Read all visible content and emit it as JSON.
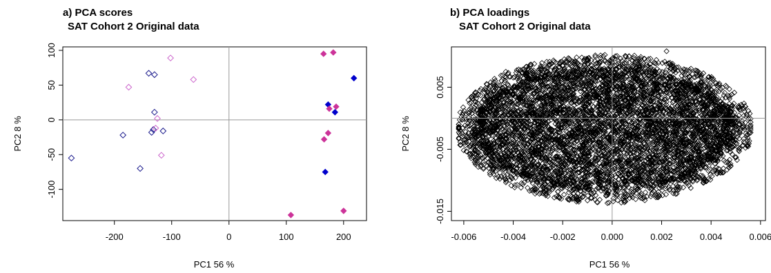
{
  "chart_data": [
    {
      "type": "scatter",
      "title": "a) PCA scores",
      "subtitle": "SAT Cohort 2 Original data",
      "xlabel": "PC1 56 %",
      "ylabel": "PC2 8 %",
      "xlim": [
        -290,
        240
      ],
      "ylim": [
        -145,
        105
      ],
      "xticks": [
        -200,
        -100,
        0,
        100,
        200
      ],
      "yticks": [
        100,
        50,
        0,
        -50,
        -100
      ],
      "reference_lines": {
        "x": 0,
        "y": 0
      },
      "colors": {
        "navy": "#1a1a8c",
        "magenta": "#cc3399",
        "blue": "#0000cc",
        "pink": "#cc66cc"
      },
      "series": [
        {
          "marker": "open-diamond",
          "color": "#1a1a8c",
          "points": [
            [
              -140,
              67
            ],
            [
              -130,
              65
            ],
            [
              -130,
              11
            ],
            [
              -132,
              -14
            ],
            [
              -135,
              -18
            ],
            [
              -115,
              -16
            ],
            [
              -185,
              -22
            ],
            [
              -155,
              -70
            ],
            [
              -275,
              -55
            ]
          ]
        },
        {
          "marker": "open-diamond",
          "color": "#cc66cc",
          "points": [
            [
              -102,
              89
            ],
            [
              -175,
              47
            ],
            [
              -62,
              58
            ],
            [
              -125,
              2
            ],
            [
              -128,
              -12
            ],
            [
              -118,
              -51
            ]
          ]
        },
        {
          "marker": "filled-diamond",
          "color": "#0000cc",
          "points": [
            [
              218,
              60
            ],
            [
              173,
              22
            ],
            [
              185,
              11
            ],
            [
              168,
              -75
            ]
          ]
        },
        {
          "marker": "filled-diamond",
          "color": "#cc3399",
          "points": [
            [
              165,
              95
            ],
            [
              182,
              97
            ],
            [
              187,
              19
            ],
            [
              175,
              16
            ],
            [
              173,
              -19
            ],
            [
              166,
              -28
            ],
            [
              108,
              -137
            ],
            [
              200,
              -131
            ]
          ]
        }
      ]
    },
    {
      "type": "scatter",
      "title": "b) PCA loadings",
      "subtitle": "SAT Cohort 2 Original data",
      "xlabel": "PC1 56 %",
      "ylabel": "PC2 8 %",
      "xlim": [
        -0.0065,
        0.0062
      ],
      "ylim": [
        -0.0165,
        0.0115
      ],
      "xticks": [
        -0.006,
        -0.004,
        -0.002,
        0.0,
        0.002,
        0.004,
        0.006
      ],
      "xtick_labels": [
        "-0.006",
        "-0.004",
        "-0.002",
        "0.000",
        "0.002",
        "0.004",
        "0.006"
      ],
      "yticks": [
        0.005,
        -0.005,
        -0.015
      ],
      "ytick_labels": [
        "0.005",
        "-0.005",
        "-0.015"
      ],
      "reference_lines": {
        "x": 0,
        "y": 0
      },
      "point_cloud": {
        "marker": "open-diamond",
        "color": "#000000",
        "x_range": [
          -0.0062,
          0.0056
        ],
        "y_range": [
          -0.0145,
          0.011
        ],
        "center": [
          -0.0003,
          -0.0015
        ],
        "description_count": "many thousands of loadings forming a dense ellipse"
      }
    }
  ]
}
